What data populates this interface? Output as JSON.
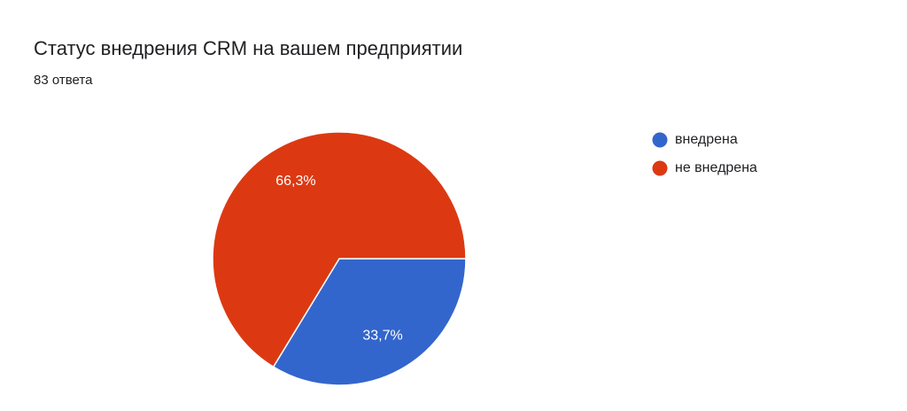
{
  "chart_data": {
    "type": "pie",
    "title": "Статус внедрения CRM на вашем предприятии",
    "subtitle": "83 ответа",
    "categories": [
      "внедрена",
      "не внедрена"
    ],
    "values": [
      33.7,
      66.3
    ],
    "value_labels": [
      "33,7%",
      "66,3%"
    ],
    "colors": [
      "#3366cc",
      "#dc3912"
    ]
  }
}
